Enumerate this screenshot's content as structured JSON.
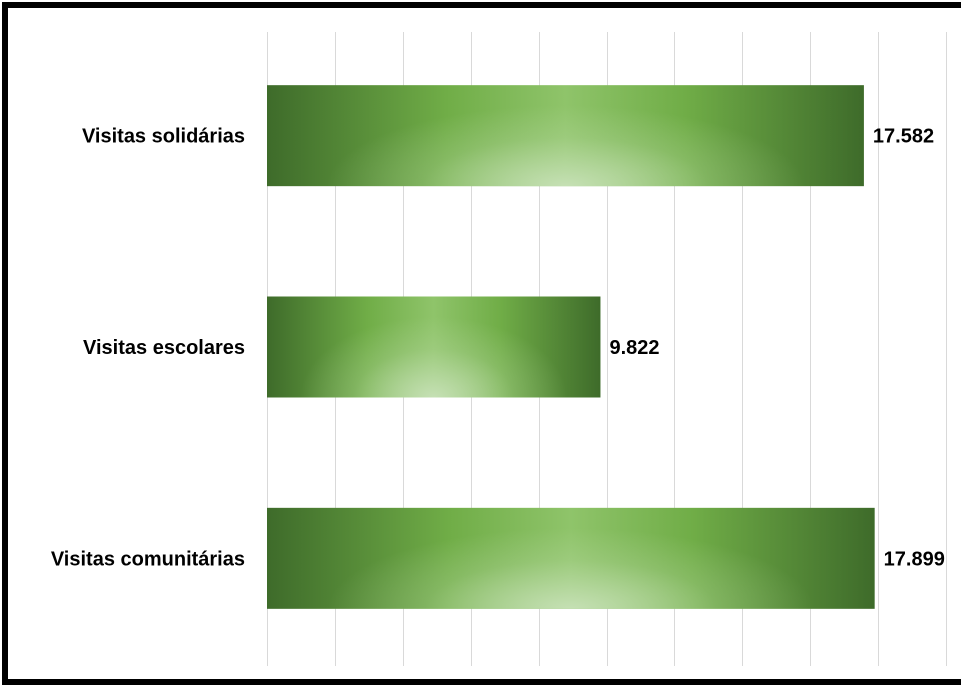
{
  "chart_data": {
    "type": "bar",
    "orientation": "horizontal",
    "title": "",
    "xlabel": "",
    "ylabel": "",
    "categories": [
      "Visitas solidárias",
      "Visitas escolares",
      "Visitas comunitárias"
    ],
    "values": [
      17582,
      9822,
      17899
    ],
    "value_labels": [
      "17.582",
      "9.822",
      "17.899"
    ],
    "xlim": [
      0,
      20000
    ],
    "grid": true,
    "legend": "none",
    "bar_colors": {
      "edge": "#3e6b2a",
      "mid": "#70ad47",
      "highlight": "#c5e0b4"
    }
  }
}
